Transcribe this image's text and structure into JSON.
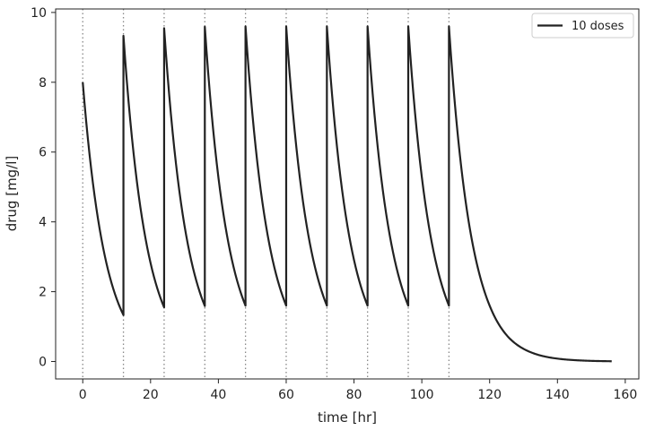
{
  "chart_data": {
    "type": "line",
    "xlabel": "time [hr]",
    "ylabel": "drug [mg/l]",
    "xlim": [
      -8,
      164
    ],
    "ylim": [
      -0.5,
      10.1
    ],
    "xticks": [
      0,
      20,
      40,
      60,
      80,
      100,
      120,
      140,
      160
    ],
    "yticks": [
      0,
      2,
      4,
      6,
      8,
      10
    ],
    "dose_times": [
      0,
      12,
      24,
      36,
      48,
      60,
      72,
      84,
      96,
      108
    ],
    "grid": false,
    "legend": "top-right",
    "series": [
      {
        "name": "10 doses",
        "color": "#222222",
        "x": [
          0,
          12,
          12,
          24,
          24,
          36,
          36,
          48,
          48,
          60,
          60,
          72,
          72,
          84,
          84,
          96,
          96,
          108,
          108,
          114,
          120,
          126,
          132,
          138,
          144,
          150,
          156
        ],
        "y": [
          8.0,
          1.33,
          9.33,
          1.55,
          9.55,
          1.59,
          9.59,
          1.6,
          9.6,
          1.6,
          9.6,
          1.6,
          9.6,
          1.6,
          9.6,
          1.6,
          9.6,
          1.6,
          9.6,
          3.9,
          1.6,
          0.65,
          0.27,
          0.11,
          0.045,
          0.018,
          0.007
        ]
      }
    ]
  }
}
